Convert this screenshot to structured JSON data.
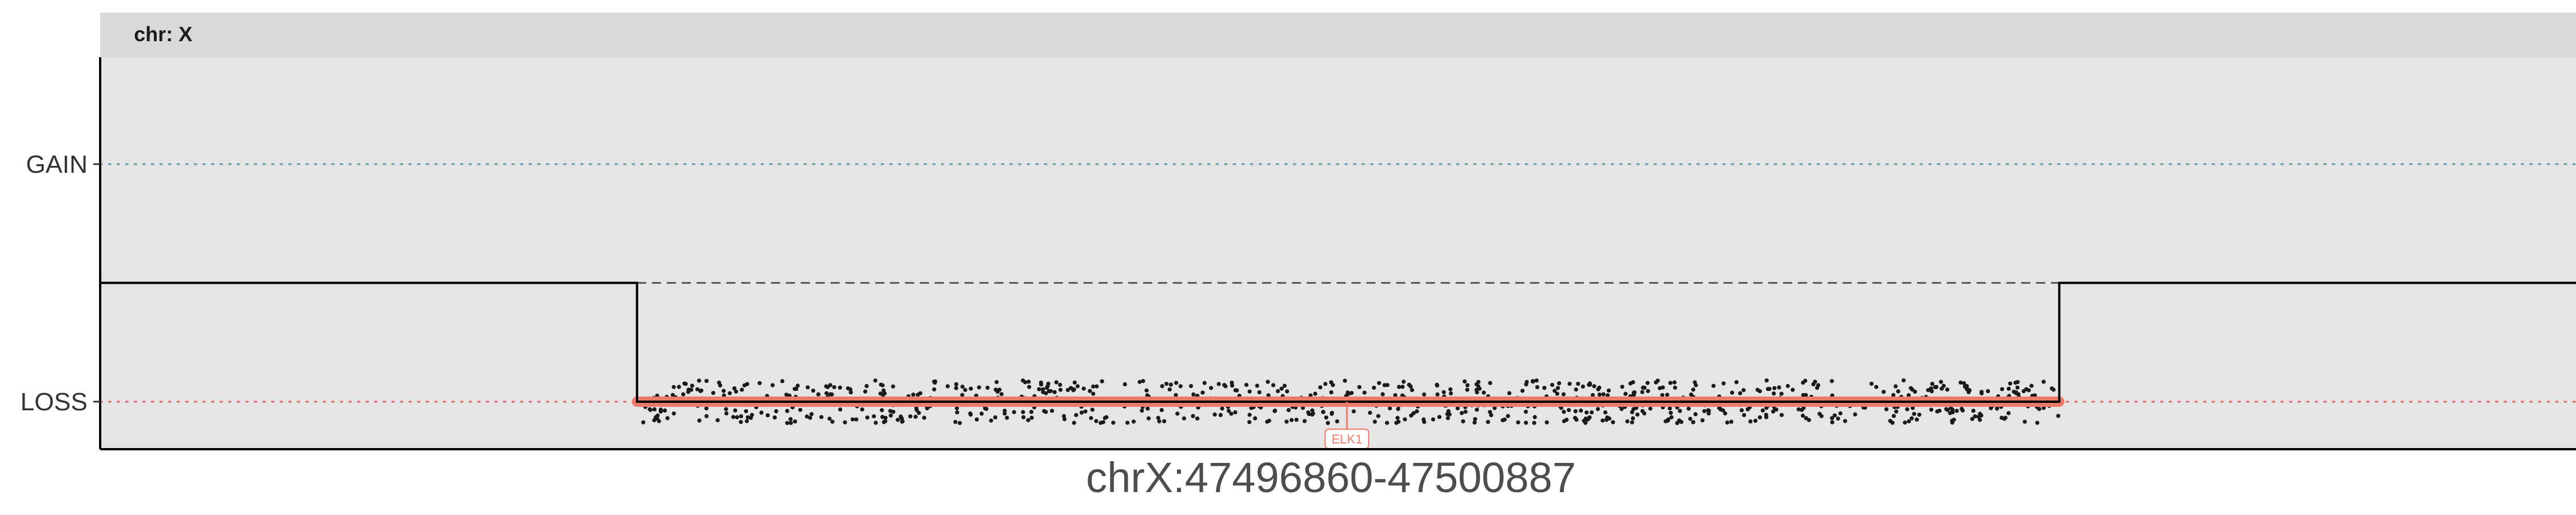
{
  "chart_data": {
    "type": "line",
    "facet_label": "chr: X",
    "xlabel": "chrX:47496860-47500887",
    "ylabel": "",
    "y_ticks": [
      "GAIN",
      "LOSS"
    ],
    "xlim": [
      47495340,
      47502350
    ],
    "ylim": [
      -0.7,
      0.95
    ],
    "grid": false,
    "reference_lines": [
      {
        "label": "GAIN",
        "y": 0.5,
        "color": "#5f9ea0",
        "style": "dotted"
      },
      {
        "label": "LOSS",
        "y": -0.5,
        "color": "#e06666",
        "style": "dotted"
      }
    ],
    "copy_number_profile": {
      "x": [
        47495340,
        47496860,
        47496860,
        47500887,
        47500887,
        47502350
      ],
      "y": [
        0,
        0,
        -0.5,
        -0.5,
        0,
        0
      ]
    },
    "baseline_dashed": {
      "x": [
        47496860,
        47500887
      ],
      "y": 0
    },
    "segment": {
      "start": 47496860,
      "end": 47500887,
      "y": -0.5,
      "state": "LOSS",
      "color": "#f07a6a"
    },
    "points": {
      "x_range": [
        47496860,
        47500887
      ],
      "y_center": -0.5,
      "spread": 0.09,
      "count": 900
    },
    "genes": [
      {
        "name": "ELK1",
        "position": 47498870,
        "color": "#f07a6a"
      }
    ]
  }
}
